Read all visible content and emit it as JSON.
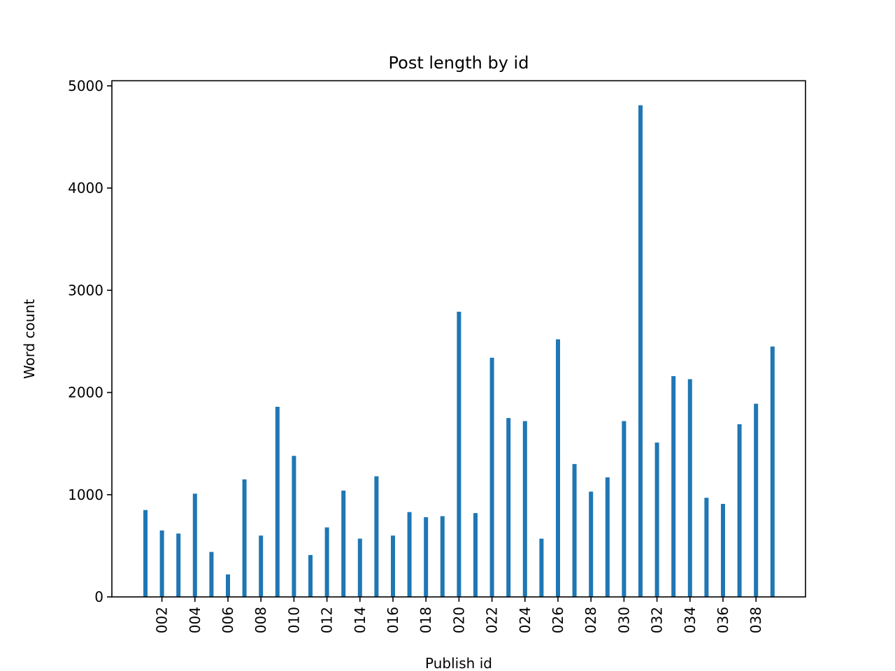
{
  "chart_data": {
    "type": "bar",
    "title": "Post length by id",
    "xlabel": "Publish id",
    "ylabel": "Word count",
    "ylim": [
      0,
      5050
    ],
    "yticks": [
      0,
      1000,
      2000,
      3000,
      4000,
      5000
    ],
    "grid": false,
    "legend": "none",
    "bar_color": "#1f77b4",
    "categories": [
      "001",
      "002",
      "003",
      "004",
      "005",
      "006",
      "007",
      "008",
      "009",
      "010",
      "011",
      "012",
      "013",
      "014",
      "015",
      "016",
      "017",
      "018",
      "019",
      "020",
      "021",
      "022",
      "023",
      "024",
      "025",
      "026",
      "027",
      "028",
      "029",
      "030",
      "031",
      "032",
      "033",
      "034",
      "035",
      "036",
      "037",
      "038",
      "039"
    ],
    "tick_labels": [
      "002",
      "004",
      "006",
      "008",
      "010",
      "012",
      "014",
      "016",
      "018",
      "020",
      "022",
      "024",
      "026",
      "028",
      "030",
      "032",
      "034",
      "036",
      "038"
    ],
    "values": [
      850,
      650,
      620,
      1010,
      440,
      220,
      1150,
      600,
      1860,
      1380,
      410,
      680,
      1040,
      570,
      1180,
      600,
      830,
      780,
      790,
      2790,
      820,
      2340,
      1750,
      1720,
      570,
      2520,
      1300,
      1030,
      1170,
      1720,
      4810,
      1510,
      2160,
      2130,
      970,
      910,
      1690,
      1890,
      2450
    ]
  }
}
